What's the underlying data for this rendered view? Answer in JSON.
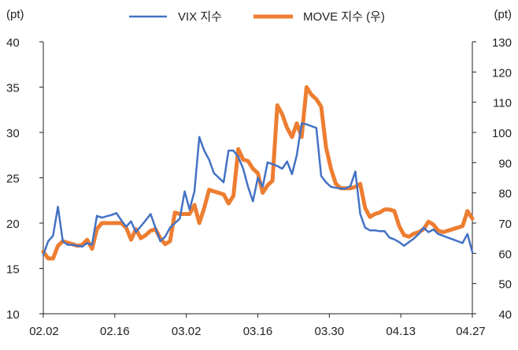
{
  "chart_data": {
    "type": "line",
    "title": "",
    "left_unit": "(pt)",
    "right_unit": "(pt)",
    "legend_position": "top",
    "grid": false,
    "x_ticks": [
      "02.02",
      "02.16",
      "03.02",
      "03.16",
      "03.30",
      "04.13",
      "04.27"
    ],
    "x_range": [
      0,
      88
    ],
    "y_left": {
      "min": 10,
      "max": 40,
      "ticks": [
        10,
        15,
        20,
        25,
        30,
        35,
        40
      ]
    },
    "y_right": {
      "min": 40,
      "max": 130,
      "ticks": [
        40,
        50,
        60,
        70,
        80,
        90,
        100,
        110,
        120,
        130
      ]
    },
    "series": [
      {
        "name": "VIX 지수",
        "axis": "left",
        "color": "#4472C4",
        "points": [
          [
            0,
            16.5
          ],
          [
            1,
            18.0
          ],
          [
            2,
            18.6
          ],
          [
            3,
            21.8
          ],
          [
            4,
            18.0
          ],
          [
            5,
            17.6
          ],
          [
            6,
            17.6
          ],
          [
            8,
            17.4
          ],
          [
            9,
            17.8
          ],
          [
            10,
            17.6
          ],
          [
            11,
            20.8
          ],
          [
            12,
            20.6
          ],
          [
            14,
            20.9
          ],
          [
            15,
            21.1
          ],
          [
            16,
            20.3
          ],
          [
            17,
            19.6
          ],
          [
            18,
            20.2
          ],
          [
            19,
            19.0
          ],
          [
            21,
            20.3
          ],
          [
            22,
            21.0
          ],
          [
            23,
            19.5
          ],
          [
            24,
            18.0
          ],
          [
            25,
            18.5
          ],
          [
            26,
            19.5
          ],
          [
            28,
            20.5
          ],
          [
            29,
            23.5
          ],
          [
            30,
            21.5
          ],
          [
            31,
            23.5
          ],
          [
            32,
            29.5
          ],
          [
            33,
            28.0
          ],
          [
            34,
            27.0
          ],
          [
            35,
            25.5
          ],
          [
            36,
            25.0
          ],
          [
            37,
            24.5
          ],
          [
            38,
            28.0
          ],
          [
            39,
            28.0
          ],
          [
            40,
            27.3
          ],
          [
            41,
            26.0
          ],
          [
            42,
            24.0
          ],
          [
            43,
            22.4
          ],
          [
            44,
            25.0
          ],
          [
            45,
            24.0
          ],
          [
            46,
            26.7
          ],
          [
            47,
            26.5
          ],
          [
            48,
            26.3
          ],
          [
            49,
            26.0
          ],
          [
            50,
            26.8
          ],
          [
            51,
            25.4
          ],
          [
            52,
            27.5
          ],
          [
            53,
            31.0
          ],
          [
            54,
            30.9
          ],
          [
            55,
            30.7
          ],
          [
            56,
            30.5
          ],
          [
            57,
            25.2
          ],
          [
            58,
            24.5
          ],
          [
            59,
            24.0
          ],
          [
            60,
            23.9
          ],
          [
            61,
            23.8
          ],
          [
            62,
            23.8
          ],
          [
            63,
            24.1
          ],
          [
            64,
            25.7
          ],
          [
            65,
            21.0
          ],
          [
            66,
            19.5
          ],
          [
            67,
            19.2
          ],
          [
            68,
            19.2
          ],
          [
            69,
            19.1
          ],
          [
            70,
            19.1
          ],
          [
            71,
            18.4
          ],
          [
            72,
            18.2
          ],
          [
            73,
            17.9
          ],
          [
            74,
            17.5
          ],
          [
            75,
            17.9
          ],
          [
            76,
            18.3
          ],
          [
            77,
            18.8
          ],
          [
            78,
            19.5
          ],
          [
            79,
            19.0
          ],
          [
            80,
            19.3
          ],
          [
            81,
            18.8
          ],
          [
            82,
            18.6
          ],
          [
            83,
            18.4
          ],
          [
            84,
            18.2
          ],
          [
            85,
            18.0
          ],
          [
            86,
            17.8
          ],
          [
            87,
            18.8
          ],
          [
            88,
            16.8
          ]
        ]
      },
      {
        "name": "MOVE 지수 (우)",
        "axis": "right",
        "color": "#ED7D31",
        "points": [
          [
            0,
            60.5
          ],
          [
            1,
            58.3
          ],
          [
            2,
            58.3
          ],
          [
            3,
            62.5
          ],
          [
            4,
            64.0
          ],
          [
            5,
            63.5
          ],
          [
            6,
            63.0
          ],
          [
            7,
            62.5
          ],
          [
            8,
            62.8
          ],
          [
            9,
            64.5
          ],
          [
            10,
            61.5
          ],
          [
            11,
            68.0
          ],
          [
            12,
            70.0
          ],
          [
            13,
            70.0
          ],
          [
            14,
            70.0
          ],
          [
            15,
            70.0
          ],
          [
            16,
            70.0
          ],
          [
            17,
            68.5
          ],
          [
            18,
            64.5
          ],
          [
            19,
            68.0
          ],
          [
            20,
            65.0
          ],
          [
            21,
            66.0
          ],
          [
            22,
            67.5
          ],
          [
            23,
            68.0
          ],
          [
            24,
            65.0
          ],
          [
            25,
            63.0
          ],
          [
            26,
            64.0
          ],
          [
            27,
            73.5
          ],
          [
            28,
            73.0
          ],
          [
            29,
            73.0
          ],
          [
            30,
            73.0
          ],
          [
            31,
            76.0
          ],
          [
            32,
            70.0
          ],
          [
            33,
            75.0
          ],
          [
            34,
            81.0
          ],
          [
            35,
            80.5
          ],
          [
            36,
            80.0
          ],
          [
            37,
            79.5
          ],
          [
            38,
            76.5
          ],
          [
            39,
            79.0
          ],
          [
            40,
            94.5
          ],
          [
            41,
            91.0
          ],
          [
            42,
            90.5
          ],
          [
            43,
            88.0
          ],
          [
            44,
            86.5
          ],
          [
            45,
            80.0
          ],
          [
            46,
            82.5
          ],
          [
            47,
            84.0
          ],
          [
            48,
            109.0
          ],
          [
            49,
            106.0
          ],
          [
            50,
            101.5
          ],
          [
            51,
            98.5
          ],
          [
            52,
            103.0
          ],
          [
            53,
            98.5
          ],
          [
            54,
            115.0
          ],
          [
            55,
            112.5
          ],
          [
            56,
            111.0
          ],
          [
            57,
            108.5
          ],
          [
            58,
            95.0
          ],
          [
            59,
            88.0
          ],
          [
            60,
            83.0
          ],
          [
            61,
            81.5
          ],
          [
            62,
            81.5
          ],
          [
            63,
            81.5
          ],
          [
            64,
            82.0
          ],
          [
            65,
            83.0
          ],
          [
            66,
            75.0
          ],
          [
            67,
            72.0
          ],
          [
            68,
            73.0
          ],
          [
            69,
            73.5
          ],
          [
            70,
            74.5
          ],
          [
            71,
            74.5
          ],
          [
            72,
            74.0
          ],
          [
            73,
            69.0
          ],
          [
            74,
            66.0
          ],
          [
            75,
            65.5
          ],
          [
            76,
            66.5
          ],
          [
            77,
            67.0
          ],
          [
            78,
            68.0
          ],
          [
            79,
            70.5
          ],
          [
            80,
            69.5
          ],
          [
            81,
            67.5
          ],
          [
            82,
            67.0
          ],
          [
            83,
            67.5
          ],
          [
            84,
            68.0
          ],
          [
            85,
            68.5
          ],
          [
            86,
            69.0
          ],
          [
            87,
            74.0
          ],
          [
            88,
            71.5
          ]
        ]
      }
    ]
  }
}
